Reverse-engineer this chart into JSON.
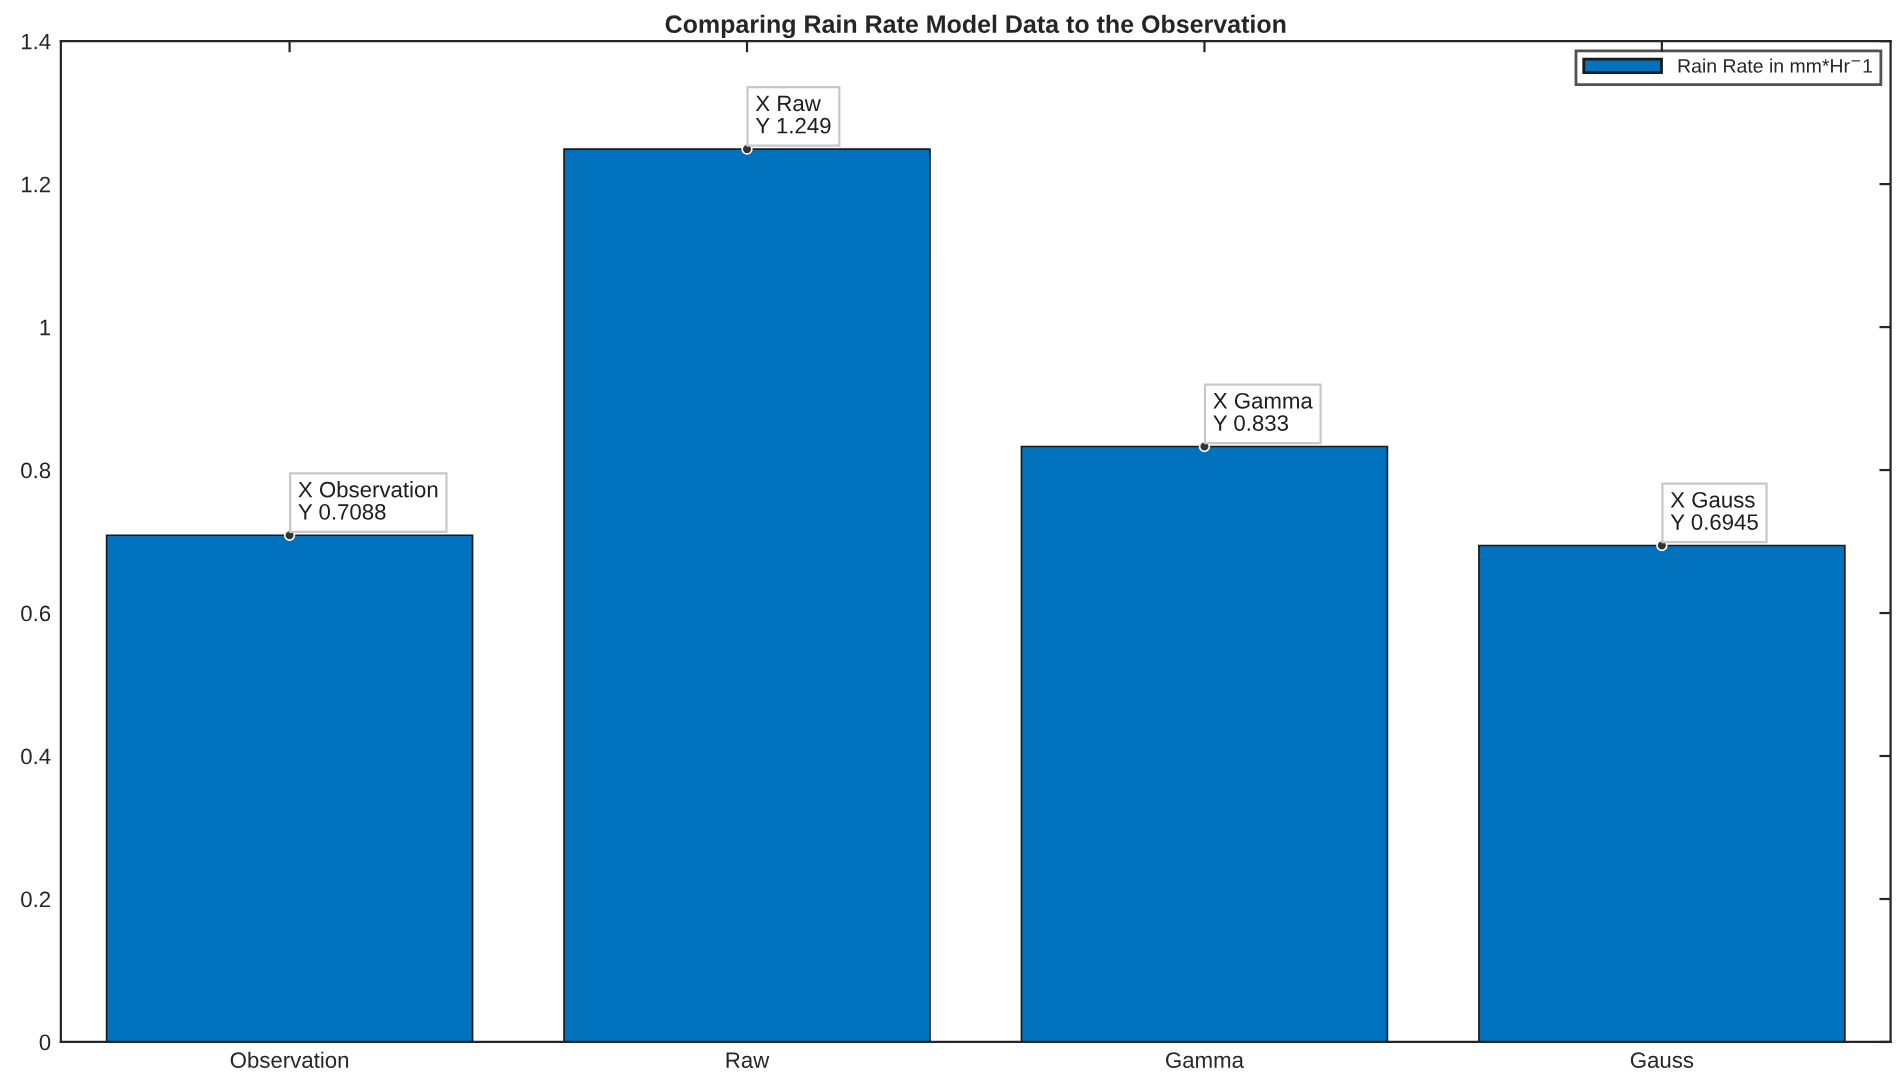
{
  "chart_data": {
    "type": "bar",
    "title": "Comparing Rain Rate Model Data to the Observation",
    "categories": [
      "Observation",
      "Raw",
      "Gamma",
      "Gauss"
    ],
    "series": [
      {
        "name": "Rain Rate in mm*Hr$^{−}$1",
        "color": "#0072bd",
        "values": [
          0.7088,
          1.249,
          0.833,
          0.6945
        ]
      }
    ],
    "ylim": [
      0,
      1.4
    ],
    "yticks": [
      0,
      0.2,
      0.4,
      0.6,
      0.8,
      1,
      1.2,
      1.4
    ],
    "annotations": [
      {
        "text": "X Observation\nY 0.7088",
        "x": "Observation",
        "y": 0.7088
      },
      {
        "text": "X Raw\nY 1.249",
        "x": "Raw",
        "y": 1.249
      },
      {
        "text": "X Gamma\nY 0.833",
        "x": "Gamma",
        "y": 0.833
      },
      {
        "text": "X Gauss\nY 0.6945",
        "x": "Gauss",
        "y": 0.6945
      }
    ],
    "legend": "top right",
    "grid": false
  }
}
